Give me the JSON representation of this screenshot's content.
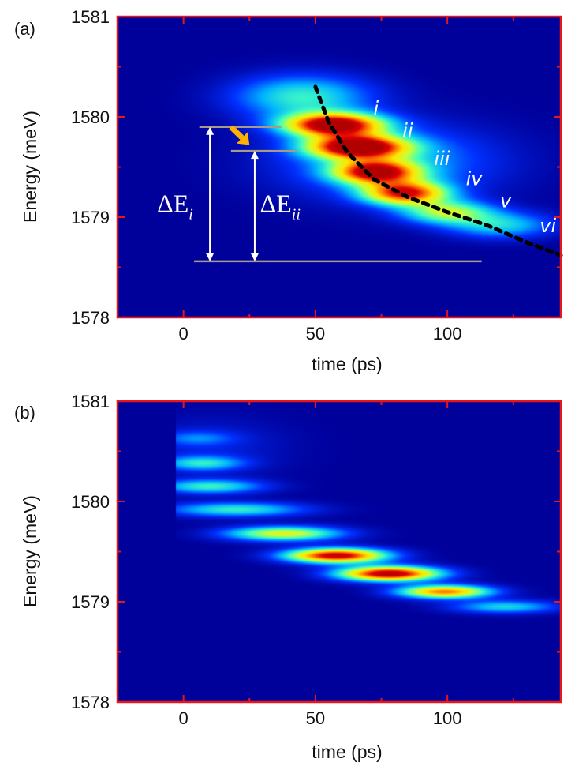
{
  "colors": {
    "frame": "#e8161b",
    "background": "#00009a",
    "guide_line": "#a89a88",
    "trend_line": "#000000",
    "arrow": "#ffb000",
    "annotation": "#ffffff"
  },
  "colormap": [
    "#00009a",
    "#0030ff",
    "#00b4ff",
    "#40ffbf",
    "#c8ff35",
    "#ffe500",
    "#ff7a00",
    "#e00000",
    "#b00000"
  ],
  "chart_data": [
    {
      "type": "heatmap",
      "panel": "(a)",
      "xlabel": "time (ps)",
      "ylabel": "Energy (meV)",
      "xlim": [
        -25,
        143
      ],
      "ylim": [
        1578,
        1581
      ],
      "x_ticks": [
        0,
        50,
        100
      ],
      "y_ticks": [
        1578,
        1579,
        1580,
        1581
      ],
      "grid": false,
      "blobs": [
        {
          "x": 57,
          "y": 1579.92,
          "sx": 13,
          "sy": 0.08,
          "amp": 1.0
        },
        {
          "x": 66,
          "y": 1579.7,
          "sx": 13,
          "sy": 0.08,
          "amp": 1.0
        },
        {
          "x": 73,
          "y": 1579.45,
          "sx": 11,
          "sy": 0.08,
          "amp": 0.85
        },
        {
          "x": 84,
          "y": 1579.24,
          "sx": 11,
          "sy": 0.08,
          "amp": 0.8
        },
        {
          "x": 100,
          "y": 1579.05,
          "sx": 12,
          "sy": 0.08,
          "amp": 0.45
        },
        {
          "x": 120,
          "y": 1578.92,
          "sx": 14,
          "sy": 0.09,
          "amp": 0.3
        },
        {
          "x": 45,
          "y": 1580.2,
          "sx": 18,
          "sy": 0.15,
          "amp": 0.35
        },
        {
          "x": 78,
          "y": 1579.55,
          "sx": 28,
          "sy": 0.25,
          "amp": 0.25
        }
      ],
      "trend_line": {
        "x": [
          50,
          55,
          62,
          72,
          85,
          100,
          115,
          130,
          143
        ],
        "y": [
          1580.3,
          1579.95,
          1579.65,
          1579.38,
          1579.2,
          1579.05,
          1578.92,
          1578.75,
          1578.62
        ]
      },
      "peak_labels": [
        {
          "text": "i",
          "x": 72,
          "y": 1580.02
        },
        {
          "text": "ii",
          "x": 83,
          "y": 1579.8
        },
        {
          "text": "iii",
          "x": 95,
          "y": 1579.52
        },
        {
          "text": "iv",
          "x": 107,
          "y": 1579.32
        },
        {
          "text": "v",
          "x": 120,
          "y": 1579.1
        },
        {
          "text": "vi",
          "x": 135,
          "y": 1578.85
        }
      ],
      "annotations": {
        "levels": [
          {
            "x0": 6,
            "x1": 37,
            "y": 1579.9
          },
          {
            "x0": 18,
            "x1": 43,
            "y": 1579.66
          },
          {
            "x0": 4,
            "x1": 113,
            "y": 1578.56
          }
        ],
        "arrows": [
          {
            "x": 10,
            "y0": 1578.56,
            "y1": 1579.9,
            "label": "ΔE",
            "sub": "i",
            "lx": -10,
            "ly": 1579.05
          },
          {
            "x": 27,
            "y0": 1578.56,
            "y1": 1579.66,
            "label": "ΔE",
            "sub": "ii",
            "lx": 29,
            "ly": 1579.05
          }
        ],
        "pointer": {
          "x0": 18,
          "y0": 1579.9,
          "x1": 25,
          "y1": 1579.72
        }
      }
    },
    {
      "type": "heatmap",
      "panel": "(b)",
      "xlabel": "time (ps)",
      "ylabel": "Energy (meV)",
      "xlim": [
        -25,
        143
      ],
      "ylim": [
        1578,
        1581
      ],
      "x_ticks": [
        0,
        50,
        100
      ],
      "y_ticks": [
        1578,
        1579,
        1580,
        1581
      ],
      "grid": false,
      "signal_start_x": -3,
      "blobs": [
        {
          "x": 5,
          "y": 1580.63,
          "sx": 10,
          "sy": 0.05,
          "amp": 0.15
        },
        {
          "x": 7,
          "y": 1580.38,
          "sx": 11,
          "sy": 0.05,
          "amp": 0.3
        },
        {
          "x": 10,
          "y": 1580.15,
          "sx": 14,
          "sy": 0.05,
          "amp": 0.35
        },
        {
          "x": 20,
          "y": 1579.92,
          "sx": 18,
          "sy": 0.05,
          "amp": 0.35
        },
        {
          "x": 38,
          "y": 1579.68,
          "sx": 15,
          "sy": 0.05,
          "amp": 0.55
        },
        {
          "x": 58,
          "y": 1579.46,
          "sx": 13,
          "sy": 0.05,
          "amp": 0.95
        },
        {
          "x": 78,
          "y": 1579.28,
          "sx": 13,
          "sy": 0.05,
          "amp": 1.0
        },
        {
          "x": 99,
          "y": 1579.1,
          "sx": 12,
          "sy": 0.045,
          "amp": 0.75
        },
        {
          "x": 122,
          "y": 1578.95,
          "sx": 14,
          "sy": 0.045,
          "amp": 0.3
        },
        {
          "x": 10,
          "y": 1580.55,
          "sx": 20,
          "sy": 0.2,
          "amp": 0.08
        }
      ]
    }
  ]
}
